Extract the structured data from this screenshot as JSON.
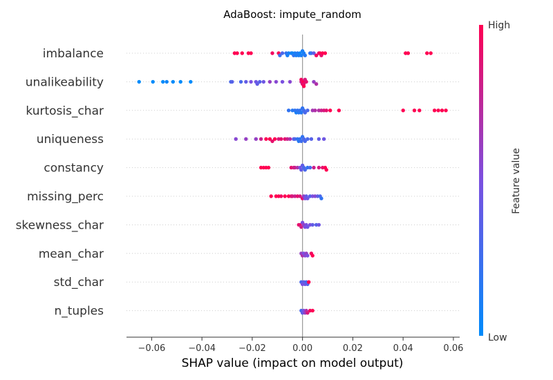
{
  "chart_data": {
    "type": "scatter",
    "title": "AdaBoost: impute_random",
    "xlabel": "SHAP value (impact on model output)",
    "xlim": [
      -0.07,
      0.0625
    ],
    "xticks": [
      -0.06,
      -0.04,
      -0.02,
      0.0,
      0.02,
      0.04,
      0.06
    ],
    "xtick_labels": [
      "−0.06",
      "−0.04",
      "−0.02",
      "0.00",
      "0.02",
      "0.04",
      "0.06"
    ],
    "colorbar": {
      "label": "Feature value",
      "high_label": "High",
      "low_label": "Low",
      "low_color": "#008bfb",
      "high_color": "#ff0052"
    },
    "grid": "dotted horizontal per feature",
    "features": [
      {
        "name": "imbalance",
        "points": [
          [
            -0.027,
            1
          ],
          [
            -0.026,
            1
          ],
          [
            -0.024,
            1
          ],
          [
            -0.0215,
            1
          ],
          [
            -0.0205,
            1
          ],
          [
            -0.012,
            0.95
          ],
          [
            -0.0095,
            1
          ],
          [
            -0.0055,
            0.05
          ],
          [
            -0.0045,
            0.1
          ],
          [
            -0.004,
            0.05
          ],
          [
            -0.0035,
            0.2
          ],
          [
            -0.003,
            0.1
          ],
          [
            -0.0025,
            0.1
          ],
          [
            -0.002,
            0.15
          ],
          [
            -0.0015,
            0.1
          ],
          [
            -0.001,
            0.05
          ],
          [
            -0.0005,
            0.1
          ],
          [
            0.0,
            0.1
          ],
          [
            0.0005,
            0.1
          ],
          [
            0.001,
            0.15
          ],
          [
            -0.009,
            0.25
          ],
          [
            -0.008,
            0.3
          ],
          [
            -0.0065,
            0.2
          ],
          [
            -0.006,
            0.1
          ],
          [
            0.0035,
            0.3
          ],
          [
            0.003,
            0.2
          ],
          [
            0.0045,
            0.4
          ],
          [
            0.0055,
            0.95
          ],
          [
            0.0065,
            0.9
          ],
          [
            0.007,
            1
          ],
          [
            0.0075,
            0.9
          ],
          [
            0.008,
            1
          ],
          [
            0.009,
            1
          ],
          [
            0.041,
            1
          ],
          [
            0.042,
            1
          ],
          [
            0.0495,
            1
          ],
          [
            0.051,
            1
          ]
        ]
      },
      {
        "name": "unalikeability",
        "points": [
          [
            -0.065,
            0
          ],
          [
            -0.0595,
            0
          ],
          [
            -0.0555,
            0
          ],
          [
            -0.054,
            0.05
          ],
          [
            -0.0515,
            0
          ],
          [
            -0.0485,
            0
          ],
          [
            -0.0445,
            0
          ],
          [
            -0.0285,
            0.3
          ],
          [
            -0.028,
            0.35
          ],
          [
            -0.0245,
            0.3
          ],
          [
            -0.0225,
            0.4
          ],
          [
            -0.0205,
            0.5
          ],
          [
            -0.0185,
            0.45
          ],
          [
            -0.018,
            0.4
          ],
          [
            -0.017,
            0.35
          ],
          [
            -0.0155,
            0.45
          ],
          [
            -0.013,
            0.6
          ],
          [
            -0.0105,
            0.55
          ],
          [
            -0.008,
            0.5
          ],
          [
            -0.005,
            0.55
          ],
          [
            -0.0005,
            0.8
          ],
          [
            0.0,
            0.9
          ],
          [
            0.0002,
            1
          ],
          [
            0.0005,
            0.9
          ],
          [
            0.001,
            0.85
          ],
          [
            -0.0005,
            0.95
          ],
          [
            0.0005,
            1
          ],
          [
            0.0015,
            0.9
          ],
          [
            0.0045,
            0.6
          ],
          [
            0.0055,
            0.7
          ]
        ]
      },
      {
        "name": "kurtosis_char",
        "points": [
          [
            -0.0055,
            0.2
          ],
          [
            -0.004,
            0.15
          ],
          [
            -0.003,
            0.2
          ],
          [
            -0.0025,
            0.1
          ],
          [
            -0.002,
            0.2
          ],
          [
            -0.0015,
            0.15
          ],
          [
            -0.001,
            0.2
          ],
          [
            -0.0005,
            0.15
          ],
          [
            0.0,
            0.2
          ],
          [
            0.0005,
            0.25
          ],
          [
            0.001,
            0.3
          ],
          [
            0.002,
            0.3
          ],
          [
            0.004,
            0.65
          ],
          [
            0.005,
            0.7
          ],
          [
            0.0065,
            0.7
          ],
          [
            0.0075,
            0.8
          ],
          [
            0.0085,
            0.85
          ],
          [
            0.0095,
            0.9
          ],
          [
            0.011,
            1
          ],
          [
            0.0145,
            1
          ],
          [
            0.04,
            1
          ],
          [
            0.0445,
            1
          ],
          [
            0.0465,
            1
          ],
          [
            0.0525,
            1
          ],
          [
            0.054,
            1
          ],
          [
            0.0555,
            1
          ],
          [
            0.057,
            1
          ]
        ]
      },
      {
        "name": "uniqueness",
        "points": [
          [
            -0.0265,
            0.55
          ],
          [
            -0.0225,
            0.6
          ],
          [
            -0.0185,
            0.6
          ],
          [
            -0.0165,
            0.8
          ],
          [
            -0.0145,
            1
          ],
          [
            -0.013,
            1
          ],
          [
            -0.012,
            0.9
          ],
          [
            -0.011,
            1
          ],
          [
            -0.0095,
            0.85
          ],
          [
            -0.0085,
            0.9
          ],
          [
            -0.007,
            0.9
          ],
          [
            -0.006,
            0.8
          ],
          [
            -0.005,
            0.7
          ],
          [
            -0.0035,
            0.4
          ],
          [
            -0.003,
            0.3
          ],
          [
            -0.002,
            0.2
          ],
          [
            -0.0015,
            0.15
          ],
          [
            -0.001,
            0.2
          ],
          [
            -0.0005,
            0.25
          ],
          [
            0.0,
            0.2
          ],
          [
            0.0005,
            0.3
          ],
          [
            0.001,
            0.3
          ],
          [
            0.002,
            0.3
          ],
          [
            0.0035,
            0.35
          ],
          [
            0.0065,
            0.4
          ],
          [
            0.0085,
            0.45
          ]
        ]
      },
      {
        "name": "constancy",
        "points": [
          [
            -0.0165,
            1
          ],
          [
            -0.0155,
            1
          ],
          [
            -0.0145,
            1
          ],
          [
            -0.0135,
            1
          ],
          [
            -0.0045,
            0.9
          ],
          [
            -0.0035,
            0.85
          ],
          [
            -0.003,
            0.8
          ],
          [
            -0.002,
            0.7
          ],
          [
            -0.001,
            0.5
          ],
          [
            -0.0005,
            0.4
          ],
          [
            0.0,
            0.4
          ],
          [
            0.0005,
            0.3
          ],
          [
            0.001,
            0.3
          ],
          [
            0.002,
            0.2
          ],
          [
            0.003,
            0.3
          ],
          [
            0.0045,
            0.8
          ],
          [
            0.0065,
            0.85
          ],
          [
            0.008,
            0.9
          ],
          [
            0.009,
            1
          ],
          [
            0.0095,
            1
          ]
        ]
      },
      {
        "name": "missing_perc",
        "points": [
          [
            -0.0125,
            1
          ],
          [
            -0.0105,
            1
          ],
          [
            -0.0095,
            1
          ],
          [
            -0.0085,
            0.95
          ],
          [
            -0.007,
            1
          ],
          [
            -0.0055,
            1
          ],
          [
            -0.0045,
            0.9
          ],
          [
            -0.004,
            0.85
          ],
          [
            -0.003,
            0.8
          ],
          [
            -0.002,
            0.9
          ],
          [
            -0.001,
            0.85
          ],
          [
            0.0,
            0.9
          ],
          [
            0.0005,
            0.6
          ],
          [
            0.001,
            0.5
          ],
          [
            0.0015,
            0.4
          ],
          [
            0.002,
            0.45
          ],
          [
            0.003,
            0.35
          ],
          [
            0.004,
            0.5
          ],
          [
            0.005,
            0.55
          ],
          [
            0.006,
            0.4
          ],
          [
            0.007,
            0.3
          ],
          [
            0.0075,
            0.2
          ]
        ]
      },
      {
        "name": "skewness_char",
        "points": [
          [
            -0.0015,
            0.9
          ],
          [
            -0.001,
            0.9
          ],
          [
            -0.0005,
            0.8
          ],
          [
            0.0,
            0.5
          ],
          [
            0.0005,
            0.6
          ],
          [
            0.001,
            0.5
          ],
          [
            0.0015,
            0.5
          ],
          [
            0.002,
            0.45
          ],
          [
            0.003,
            0.5
          ],
          [
            0.004,
            0.4
          ],
          [
            0.0055,
            0.35
          ],
          [
            0.0065,
            0.45
          ]
        ]
      },
      {
        "name": "mean_char",
        "points": [
          [
            -0.0005,
            0.6
          ],
          [
            0.0,
            0.7
          ],
          [
            0.0005,
            0.5
          ],
          [
            0.001,
            0.55
          ],
          [
            0.0015,
            0.6
          ],
          [
            0.002,
            0.5
          ],
          [
            0.0035,
            0.95
          ],
          [
            0.004,
            1
          ]
        ]
      },
      {
        "name": "std_char",
        "points": [
          [
            -0.0005,
            0.3
          ],
          [
            0.0,
            0.5
          ],
          [
            0.0005,
            0.4
          ],
          [
            0.001,
            0.45
          ],
          [
            0.0015,
            0.3
          ],
          [
            0.002,
            0.35
          ],
          [
            0.0025,
            1
          ]
        ]
      },
      {
        "name": "n_tuples",
        "points": [
          [
            -0.0005,
            0.3
          ],
          [
            0.0,
            0.4
          ],
          [
            0.0005,
            0.5
          ],
          [
            0.001,
            0.6
          ],
          [
            0.0015,
            0.7
          ],
          [
            0.002,
            0.85
          ],
          [
            0.003,
            0.95
          ],
          [
            0.004,
            1
          ]
        ]
      }
    ]
  }
}
